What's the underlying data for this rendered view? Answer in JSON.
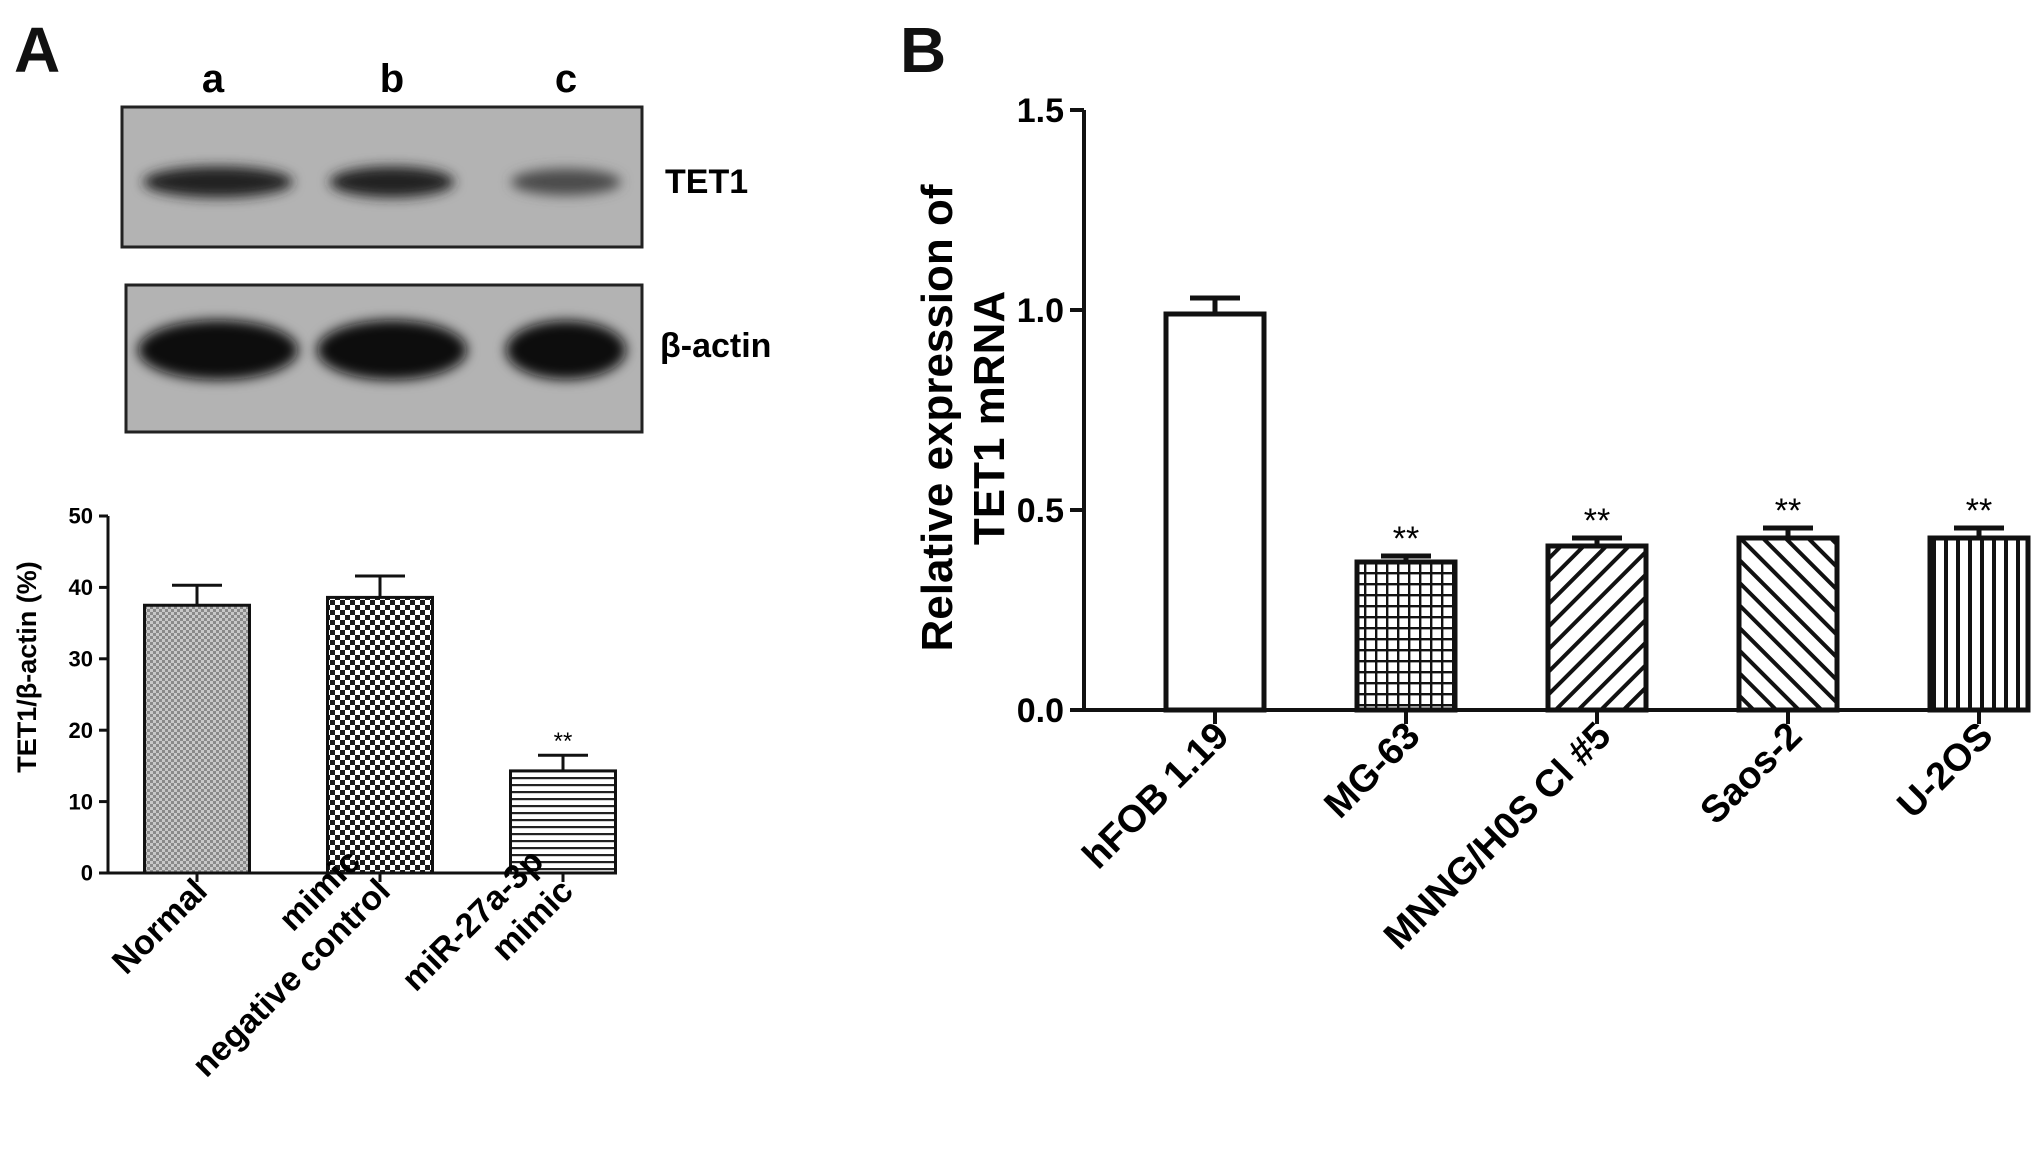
{
  "panels": {
    "A": {
      "letter": "A",
      "blot": {
        "lanes": [
          "a",
          "b",
          "c"
        ],
        "rows": [
          {
            "label": "TET1",
            "band_intensity": [
              0.8,
              0.78,
              0.45
            ]
          },
          {
            "label": "β-actin",
            "band_intensity": [
              1.0,
              1.0,
              0.95
            ]
          }
        ]
      }
    },
    "B": {
      "letter": "B"
    }
  },
  "chart_data": [
    {
      "panel": "A",
      "type": "bar",
      "categories": [
        "Normal",
        "mimic negative control",
        "miR-27a-3p mimic"
      ],
      "category_label_lines": [
        [
          "Normal"
        ],
        [
          "mimic",
          "negative control"
        ],
        [
          "miR-27a-3p",
          "mimic"
        ]
      ],
      "values": [
        37.5,
        38.6,
        14.3
      ],
      "errors": [
        2.8,
        3.0,
        2.2
      ],
      "significance": [
        "",
        "",
        "**"
      ],
      "patterns": [
        "fine-check",
        "checker",
        "horizontal-lines"
      ],
      "ylabel": "TET1/β-actin (%)",
      "xlabel": "",
      "ylim": [
        0,
        50
      ],
      "yticks": [
        0,
        10,
        20,
        30,
        40,
        50
      ],
      "ytick_labels": [
        "0",
        "10",
        "20",
        "30",
        "40",
        "50"
      ],
      "grid": false
    },
    {
      "panel": "B",
      "type": "bar",
      "categories": [
        "hFOB 1.19",
        "MG-63",
        "MNNG/H0S Cl #5",
        "Saos-2",
        "U-2OS"
      ],
      "values": [
        0.99,
        0.37,
        0.41,
        0.43,
        0.43
      ],
      "errors": [
        0.04,
        0.015,
        0.02,
        0.025,
        0.025
      ],
      "significance": [
        "",
        "**",
        "**",
        "**",
        "**"
      ],
      "patterns": [
        "none",
        "grid",
        "diag-back",
        "diag-forward",
        "vertical-lines"
      ],
      "ylabel_lines": [
        "Relative expression of",
        "TET1 mRNA"
      ],
      "xlabel": "",
      "ylim": [
        0,
        1.5
      ],
      "yticks": [
        0,
        0.5,
        1.0,
        1.5
      ],
      "ytick_labels": [
        "0.0",
        "0.5",
        "1.0",
        "1.5"
      ],
      "grid": false
    }
  ]
}
